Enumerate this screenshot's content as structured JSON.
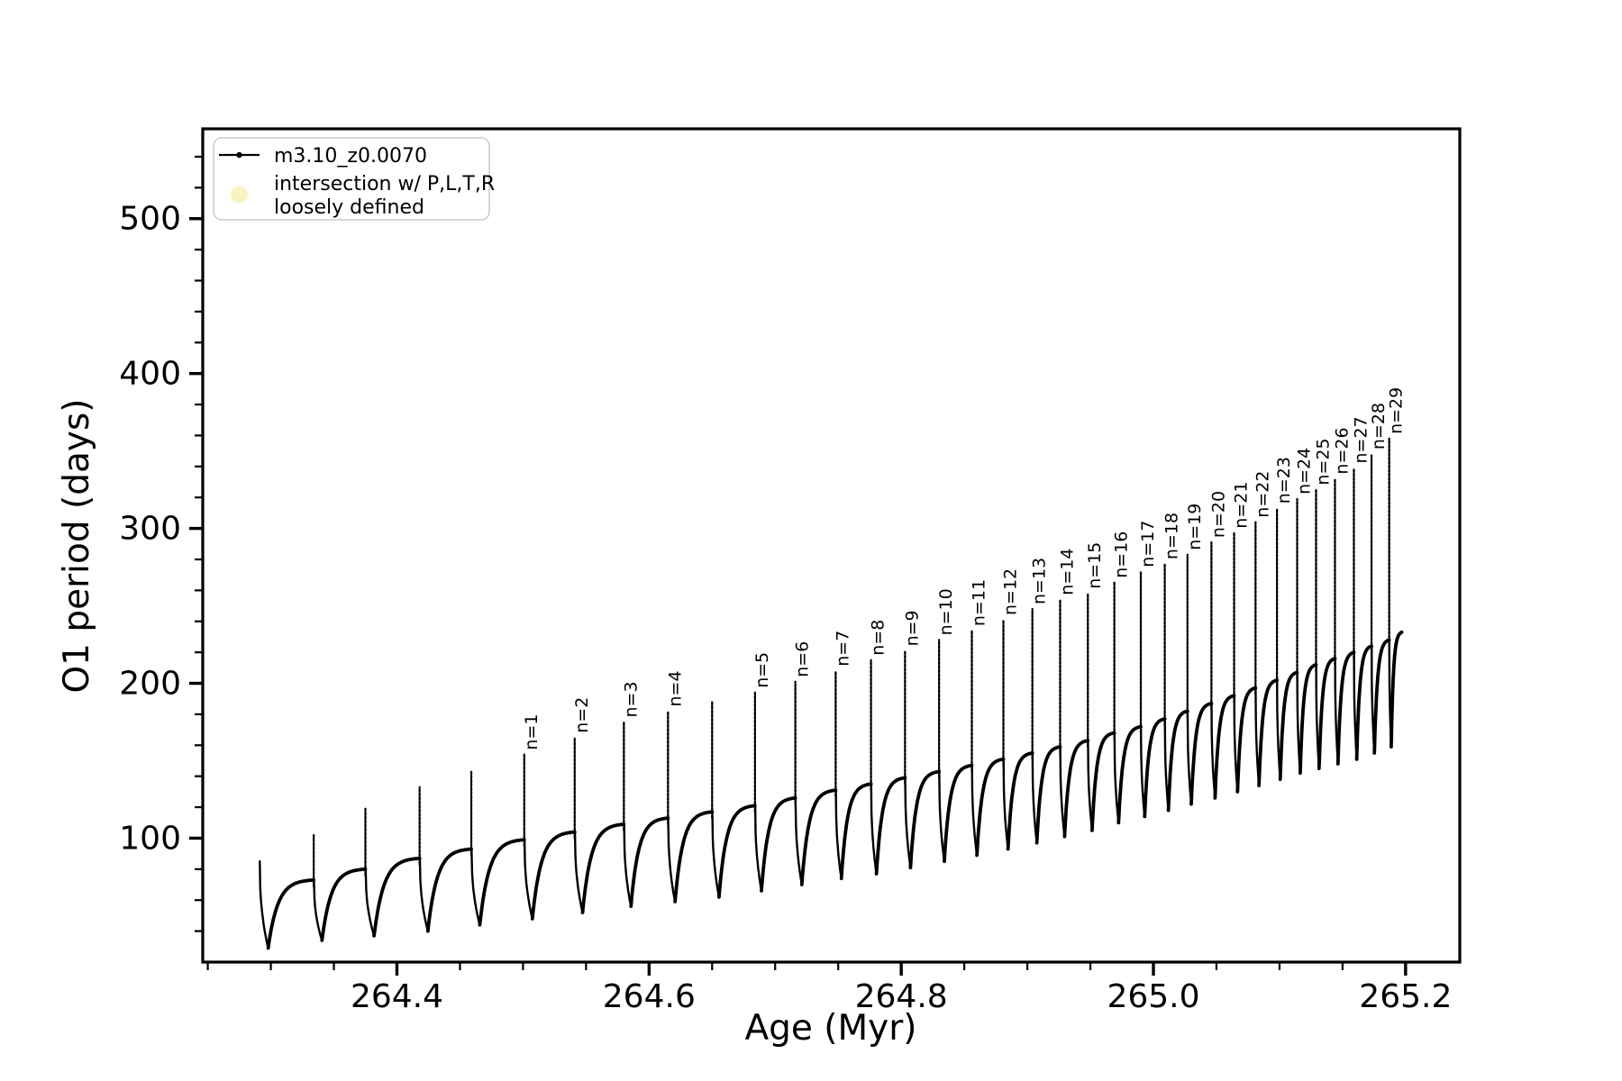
{
  "figure": {
    "background": "#ffffff",
    "line_color": "#000000",
    "axes": {
      "xlabel": "Age (Myr)",
      "ylabel": "O1 period (days)",
      "xlim": [
        264.246,
        265.243
      ],
      "ylim": [
        20,
        558
      ],
      "x_major_ticks": [
        264.4,
        264.6,
        264.8,
        265.0,
        265.2
      ],
      "x_major_tick_labels": [
        "264.4",
        "264.6",
        "264.8",
        "265.0",
        "265.2"
      ],
      "x_minor_step": 0.05,
      "y_major_ticks": [
        100,
        200,
        300,
        400,
        500
      ],
      "y_major_tick_labels": [
        "100",
        "200",
        "300",
        "400",
        "500"
      ],
      "y_minor_step": 20
    },
    "legend": {
      "entries": [
        {
          "type": "line-with-dot-marker",
          "label": "m3.10_z0.0070",
          "color": "#000000"
        },
        {
          "type": "circle-marker",
          "label_line1": "intersection w/ P,L,T,R",
          "label_line2": "loosely defined",
          "color": "#f6f2bd"
        }
      ]
    }
  },
  "chart_data": {
    "type": "line",
    "title": "",
    "xlabel": "Age (Myr)",
    "ylabel": "O1 period (days)",
    "xlim": [
      264.246,
      265.243
    ],
    "ylim": [
      20,
      558
    ],
    "grid": false,
    "legend_position": "upper-left",
    "series_name": "m3.10_z0.0070",
    "description": "Thermal-pulse cycles: each cycle rises from a dip, saturates to a shoulder, ends with a narrow tall spike (labeled n=1..29 where defined), then drops sharply to the next dip.",
    "pulse_cycles": [
      {
        "age": 264.291,
        "peak": 85,
        "shoulder": null,
        "dip": 29,
        "label": null
      },
      {
        "age": 264.334,
        "peak": 103,
        "shoulder": 73,
        "dip": 34,
        "label": null
      },
      {
        "age": 264.375,
        "peak": 119,
        "shoulder": 80,
        "dip": 37,
        "label": null
      },
      {
        "age": 264.418,
        "peak": 133,
        "shoulder": 87,
        "dip": 40,
        "label": null
      },
      {
        "age": 264.459,
        "peak": 143,
        "shoulder": 93,
        "dip": 44,
        "label": null
      },
      {
        "age": 264.501,
        "peak": 154,
        "shoulder": 99,
        "dip": 48,
        "label": "n=1"
      },
      {
        "age": 264.541,
        "peak": 165,
        "shoulder": 104,
        "dip": 52,
        "label": "n=2"
      },
      {
        "age": 264.58,
        "peak": 175,
        "shoulder": 109,
        "dip": 56,
        "label": "n=3"
      },
      {
        "age": 264.615,
        "peak": 182,
        "shoulder": 113,
        "dip": 59,
        "label": "n=4"
      },
      {
        "age": 264.65,
        "peak": 188,
        "shoulder": 117,
        "dip": 62,
        "label": null
      },
      {
        "age": 264.684,
        "peak": 194,
        "shoulder": 121,
        "dip": 66,
        "label": "n=5"
      },
      {
        "age": 264.716,
        "peak": 201,
        "shoulder": 126,
        "dip": 70,
        "label": "n=6"
      },
      {
        "age": 264.748,
        "peak": 208,
        "shoulder": 131,
        "dip": 74,
        "label": "n=7"
      },
      {
        "age": 264.776,
        "peak": 215,
        "shoulder": 135,
        "dip": 77,
        "label": "n=8"
      },
      {
        "age": 264.803,
        "peak": 221,
        "shoulder": 139,
        "dip": 81,
        "label": "n=9"
      },
      {
        "age": 264.83,
        "peak": 228,
        "shoulder": 143,
        "dip": 85,
        "label": "n=10"
      },
      {
        "age": 264.856,
        "peak": 234,
        "shoulder": 147,
        "dip": 89,
        "label": "n=11"
      },
      {
        "age": 264.881,
        "peak": 241,
        "shoulder": 151,
        "dip": 93,
        "label": "n=12"
      },
      {
        "age": 264.904,
        "peak": 248,
        "shoulder": 155,
        "dip": 97,
        "label": "n=13"
      },
      {
        "age": 264.926,
        "peak": 254,
        "shoulder": 159,
        "dip": 101,
        "label": "n=14"
      },
      {
        "age": 264.948,
        "peak": 258,
        "shoulder": 163,
        "dip": 105,
        "label": "n=15"
      },
      {
        "age": 264.969,
        "peak": 265,
        "shoulder": 168,
        "dip": 110,
        "label": "n=16"
      },
      {
        "age": 264.99,
        "peak": 272,
        "shoulder": 172,
        "dip": 114,
        "label": "n=17"
      },
      {
        "age": 265.009,
        "peak": 277,
        "shoulder": 177,
        "dip": 118,
        "label": "n=18"
      },
      {
        "age": 265.027,
        "peak": 283,
        "shoulder": 182,
        "dip": 122,
        "label": "n=19"
      },
      {
        "age": 265.046,
        "peak": 291,
        "shoulder": 187,
        "dip": 126,
        "label": "n=20"
      },
      {
        "age": 265.064,
        "peak": 297,
        "shoulder": 192,
        "dip": 130,
        "label": "n=21"
      },
      {
        "age": 265.081,
        "peak": 304,
        "shoulder": 197,
        "dip": 134,
        "label": "n=22"
      },
      {
        "age": 265.098,
        "peak": 313,
        "shoulder": 202,
        "dip": 138,
        "label": "n=23"
      },
      {
        "age": 265.114,
        "peak": 319,
        "shoulder": 207,
        "dip": 142,
        "label": "n=24"
      },
      {
        "age": 265.129,
        "peak": 325,
        "shoulder": 212,
        "dip": 145,
        "label": "n=25"
      },
      {
        "age": 265.144,
        "peak": 332,
        "shoulder": 216,
        "dip": 148,
        "label": "n=26"
      },
      {
        "age": 265.159,
        "peak": 339,
        "shoulder": 220,
        "dip": 151,
        "label": "n=27"
      },
      {
        "age": 265.173,
        "peak": 348,
        "shoulder": 224,
        "dip": 155,
        "label": "n=28"
      },
      {
        "age": 265.187,
        "peak": 358,
        "shoulder": 228,
        "dip": 159,
        "label": "n=29"
      }
    ],
    "tail": {
      "age": 265.197,
      "value": 233
    }
  }
}
